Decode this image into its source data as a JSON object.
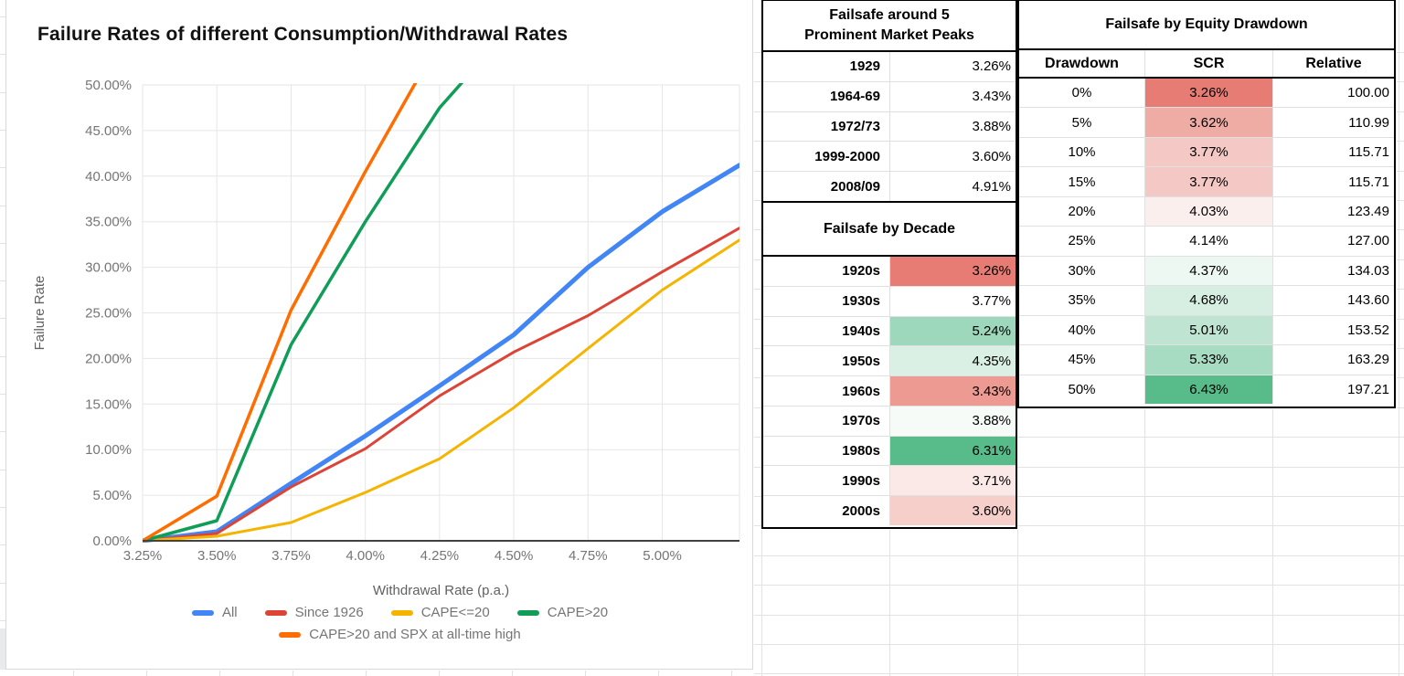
{
  "chart_data": {
    "type": "line",
    "title": "Failure Rates of different Consumption/Withdrawal Rates",
    "xlabel": "Withdrawal Rate (p.a.)",
    "ylabel": "Failure Rate",
    "xlim": [
      3.25,
      5.26
    ],
    "ylim": [
      0,
      50
    ],
    "grid": true,
    "legend_position": "bottom",
    "x_ticks": [
      {
        "value": 3.25,
        "label": "3.25%"
      },
      {
        "value": 3.5,
        "label": "3.50%"
      },
      {
        "value": 3.75,
        "label": "3.75%"
      },
      {
        "value": 4.0,
        "label": "4.00%"
      },
      {
        "value": 4.25,
        "label": "4.25%"
      },
      {
        "value": 4.5,
        "label": "4.50%"
      },
      {
        "value": 4.75,
        "label": "4.75%"
      },
      {
        "value": 5.0,
        "label": "5.00%"
      }
    ],
    "y_ticks": [
      {
        "value": 0,
        "label": "0.00%"
      },
      {
        "value": 5,
        "label": "5.00%"
      },
      {
        "value": 10,
        "label": "10.00%"
      },
      {
        "value": 15,
        "label": "15.00%"
      },
      {
        "value": 20,
        "label": "20.00%"
      },
      {
        "value": 25,
        "label": "25.00%"
      },
      {
        "value": 30,
        "label": "30.00%"
      },
      {
        "value": 35,
        "label": "35.00%"
      },
      {
        "value": 40,
        "label": "40.00%"
      },
      {
        "value": 45,
        "label": "45.00%"
      },
      {
        "value": 50,
        "label": "50.00%"
      }
    ],
    "series": [
      {
        "name": "All",
        "color": "#4285F4",
        "width": 5,
        "x": [
          3.25,
          3.5,
          3.75,
          4.0,
          4.25,
          4.5,
          4.75,
          5.0,
          5.26
        ],
        "y": [
          0,
          1.0,
          6.3,
          11.5,
          17.0,
          22.6,
          30.0,
          36.1,
          41.2
        ]
      },
      {
        "name": "Since 1926",
        "color": "#DB4437",
        "width": 3,
        "x": [
          3.25,
          3.5,
          3.75,
          4.0,
          4.25,
          4.5,
          4.75,
          5.0,
          5.26
        ],
        "y": [
          0,
          0.8,
          5.9,
          10.1,
          15.9,
          20.7,
          24.7,
          29.5,
          34.3
        ]
      },
      {
        "name": "CAPE<=20",
        "color": "#F4B400",
        "width": 3,
        "x": [
          3.25,
          3.5,
          3.75,
          4.0,
          4.25,
          4.5,
          4.75,
          5.0,
          5.26
        ],
        "y": [
          0,
          0.5,
          2.0,
          5.3,
          9.0,
          14.6,
          21.1,
          27.5,
          33.0
        ]
      },
      {
        "name": "CAPE>20",
        "color": "#0F9D58",
        "width": 3.5,
        "x": [
          3.25,
          3.5,
          3.75,
          4.0,
          4.25,
          4.4
        ],
        "y": [
          0,
          2.2,
          21.5,
          35.0,
          47.5,
          53.0
        ]
      },
      {
        "name": "CAPE>20 and SPX at all-time high",
        "color": "#FF6D00",
        "width": 3.5,
        "x": [
          3.25,
          3.5,
          3.75,
          4.0,
          4.2
        ],
        "y": [
          0,
          4.9,
          25.3,
          40.5,
          52.0
        ]
      }
    ],
    "legend_rows": [
      [
        0,
        1,
        2,
        3
      ],
      [
        4
      ]
    ]
  },
  "tables": {
    "peaks": {
      "title_line1": "Failsafe around 5",
      "title_line2": "Prominent Market Peaks",
      "rows": [
        {
          "label": "1929",
          "value": "3.26%"
        },
        {
          "label": "1964-69",
          "value": "3.43%"
        },
        {
          "label": "1972/73",
          "value": "3.88%"
        },
        {
          "label": "1999-2000",
          "value": "3.60%"
        },
        {
          "label": "2008/09",
          "value": "4.91%"
        }
      ]
    },
    "decade": {
      "title": "Failsafe by Decade",
      "rows": [
        {
          "label": "1920s",
          "value": "3.26%",
          "bg": "#E67C73"
        },
        {
          "label": "1930s",
          "value": "3.77%",
          "bg": "#FEFFFE"
        },
        {
          "label": "1940s",
          "value": "5.24%",
          "bg": "#9ED8BC"
        },
        {
          "label": "1950s",
          "value": "4.35%",
          "bg": "#DAF0E5"
        },
        {
          "label": "1960s",
          "value": "3.43%",
          "bg": "#EC9A92"
        },
        {
          "label": "1970s",
          "value": "3.88%",
          "bg": "#F6FBF8"
        },
        {
          "label": "1980s",
          "value": "6.31%",
          "bg": "#57BB8A"
        },
        {
          "label": "1990s",
          "value": "3.71%",
          "bg": "#FBE9E8"
        },
        {
          "label": "2000s",
          "value": "3.60%",
          "bg": "#F6CFCB"
        }
      ]
    },
    "equity": {
      "title": "Failsafe by Equity Drawdown",
      "columns": [
        "Drawdown",
        "SCR",
        "Relative"
      ],
      "rows": [
        {
          "drawdown": "0%",
          "scr": "3.26%",
          "scr_bg": "#E67C73",
          "relative": "100.00"
        },
        {
          "drawdown": "5%",
          "scr": "3.62%",
          "scr_bg": "#EFACA5",
          "relative": "110.99"
        },
        {
          "drawdown": "10%",
          "scr": "3.77%",
          "scr_bg": "#F4C8C4",
          "relative": "115.71"
        },
        {
          "drawdown": "15%",
          "scr": "3.77%",
          "scr_bg": "#F4C8C4",
          "relative": "115.71"
        },
        {
          "drawdown": "20%",
          "scr": "4.03%",
          "scr_bg": "#FBEFED",
          "relative": "123.49"
        },
        {
          "drawdown": "25%",
          "scr": "4.14%",
          "scr_bg": "#FFFFFF",
          "relative": "127.00"
        },
        {
          "drawdown": "30%",
          "scr": "4.37%",
          "scr_bg": "#EEF8F3",
          "relative": "134.03"
        },
        {
          "drawdown": "35%",
          "scr": "4.68%",
          "scr_bg": "#D7EFE3",
          "relative": "143.60"
        },
        {
          "drawdown": "40%",
          "scr": "5.01%",
          "scr_bg": "#BFE5D2",
          "relative": "153.52"
        },
        {
          "drawdown": "45%",
          "scr": "5.33%",
          "scr_bg": "#A7DBC2",
          "relative": "163.29"
        },
        {
          "drawdown": "50%",
          "scr": "6.43%",
          "scr_bg": "#57BB8A",
          "relative": "197.21"
        }
      ]
    }
  }
}
